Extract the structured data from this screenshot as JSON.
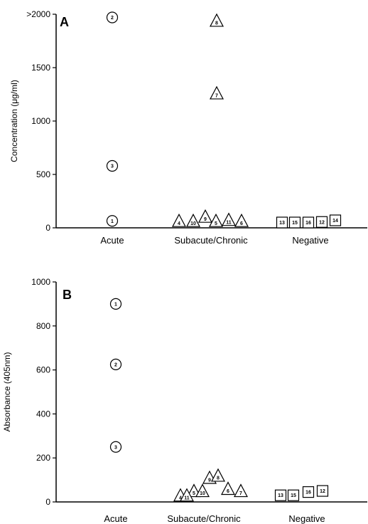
{
  "chart_data": [
    {
      "type": "scatter",
      "panel_label": "A",
      "ylabel": "Concentration (μg/ml)",
      "ylim": [
        0,
        2000
      ],
      "yticks": [
        {
          "value": 0,
          "label": "0"
        },
        {
          "value": 500,
          "label": "500"
        },
        {
          "value": 1000,
          "label": "1000"
        },
        {
          "value": 1500,
          "label": "1500"
        },
        {
          "value": 2000,
          "label": ">2000"
        }
      ],
      "categories": [
        "Acute",
        "Subacute/Chronic",
        "Negative"
      ],
      "series": [
        {
          "category": "Acute",
          "marker": "circle",
          "points": [
            {
              "id": "2",
              "y": 1970
            },
            {
              "id": "3",
              "y": 580
            },
            {
              "id": "1",
              "y": 65
            }
          ]
        },
        {
          "category": "Subacute/Chronic",
          "marker": "triangle",
          "points": [
            {
              "id": "8",
              "y": 1930
            },
            {
              "id": "7",
              "y": 1250
            },
            {
              "id": "4",
              "y": 55
            },
            {
              "id": "10",
              "y": 55
            },
            {
              "id": "9",
              "y": 95
            },
            {
              "id": "5",
              "y": 55
            },
            {
              "id": "11",
              "y": 65
            },
            {
              "id": "6",
              "y": 55
            }
          ]
        },
        {
          "category": "Negative",
          "marker": "square",
          "points": [
            {
              "id": "13",
              "y": 50
            },
            {
              "id": "15",
              "y": 50
            },
            {
              "id": "16",
              "y": 50
            },
            {
              "id": "12",
              "y": 55
            },
            {
              "id": "14",
              "y": 70
            }
          ]
        }
      ]
    },
    {
      "type": "scatter",
      "panel_label": "B",
      "ylabel": "Absorbance (405nm)",
      "ylim": [
        0,
        1000
      ],
      "yticks": [
        {
          "value": 0,
          "label": "0"
        },
        {
          "value": 200,
          "label": "200"
        },
        {
          "value": 400,
          "label": "400"
        },
        {
          "value": 600,
          "label": "600"
        },
        {
          "value": 800,
          "label": "800"
        },
        {
          "value": 1000,
          "label": "1000"
        }
      ],
      "categories": [
        "Acute",
        "Subacute/Chronic",
        "Negative"
      ],
      "series": [
        {
          "category": "Acute",
          "marker": "circle",
          "points": [
            {
              "id": "1",
              "y": 900
            },
            {
              "id": "2",
              "y": 625
            },
            {
              "id": "3",
              "y": 250
            }
          ]
        },
        {
          "category": "Subacute/Chronic",
          "marker": "triangle",
          "points": [
            {
              "id": "4",
              "y": 25
            },
            {
              "id": "5",
              "y": 45
            },
            {
              "id": "11",
              "y": 25
            },
            {
              "id": "9",
              "y": 105
            },
            {
              "id": "10",
              "y": 45
            },
            {
              "id": "8",
              "y": 115
            },
            {
              "id": "6",
              "y": 55
            },
            {
              "id": "7",
              "y": 45
            }
          ]
        },
        {
          "category": "Negative",
          "marker": "square",
          "points": [
            {
              "id": "13",
              "y": 30
            },
            {
              "id": "15",
              "y": 30
            },
            {
              "id": "16",
              "y": 45
            },
            {
              "id": "12",
              "y": 50
            }
          ]
        }
      ]
    }
  ]
}
